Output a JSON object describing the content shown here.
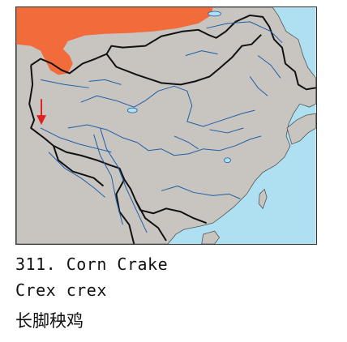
{
  "map": {
    "colors": {
      "sea": "#aee0f2",
      "land": "#c8c4c0",
      "range": "#f26b3a",
      "river": "#1f5fa8",
      "border": "#111111",
      "marker": "#e02020"
    },
    "marker_icon": "down-arrow-icon"
  },
  "caption": {
    "number": "311.",
    "common_name": "Corn Crake",
    "scientific_name": "Crex crex",
    "chinese_name": "长脚秧鸡"
  }
}
